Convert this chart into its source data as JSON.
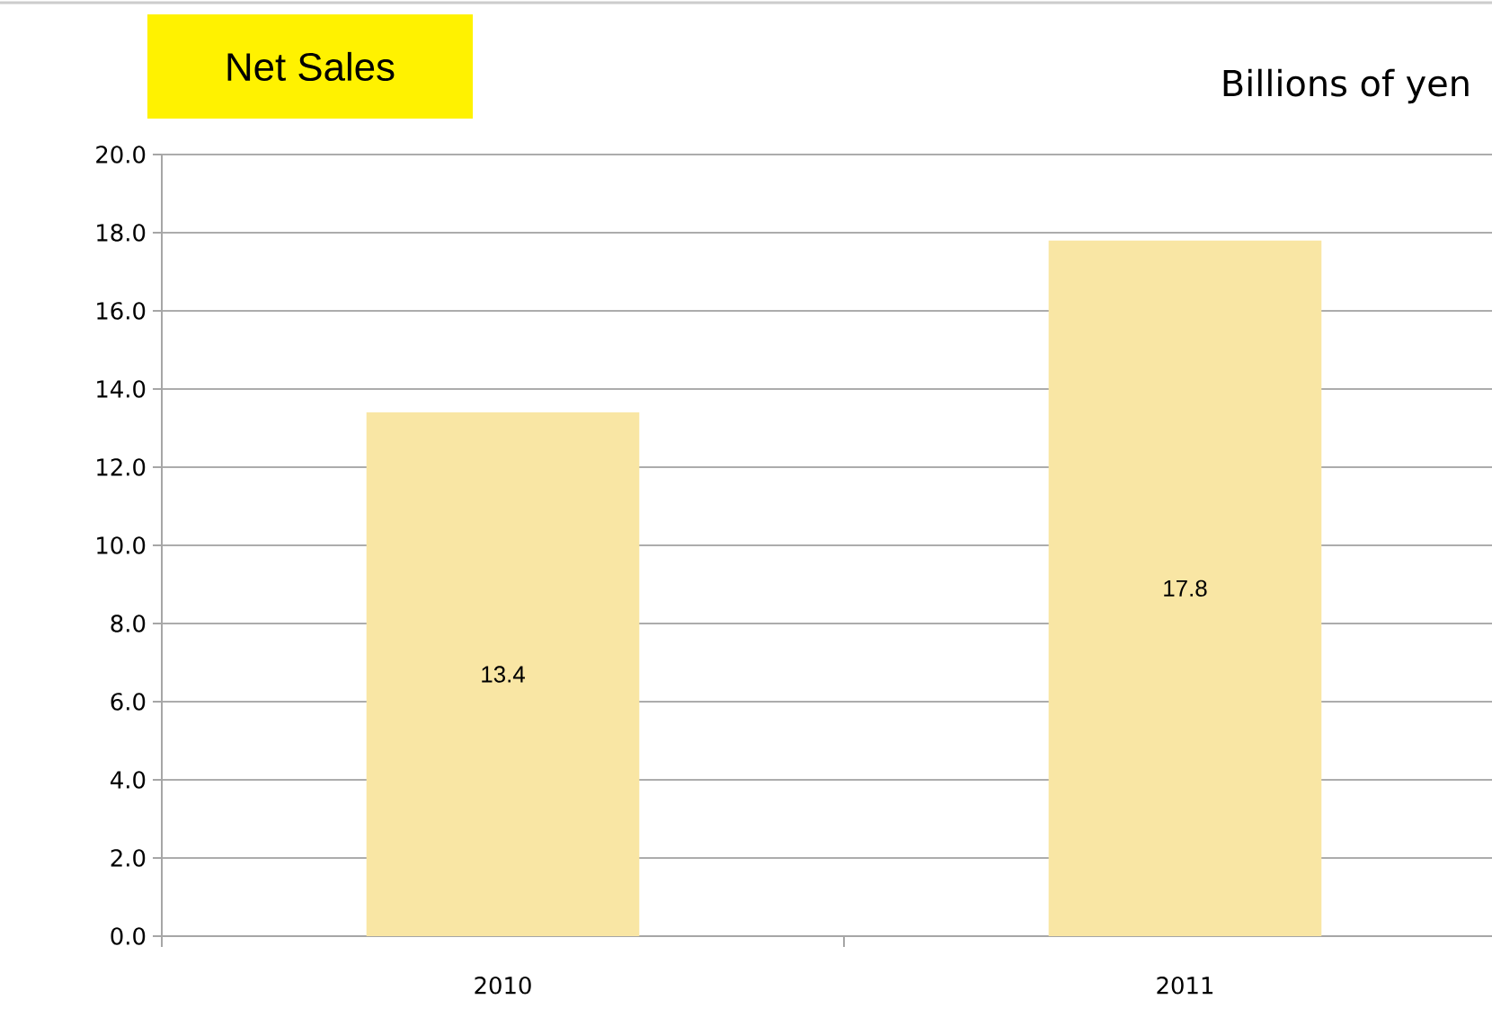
{
  "chart_data": {
    "type": "bar",
    "title": "Net Sales",
    "subtitle": "Billions of yen",
    "categories": [
      "2010",
      "2011"
    ],
    "values": [
      13.4,
      17.8
    ],
    "color": "#f9e6a4",
    "ylim": [
      0,
      20
    ],
    "yticks": [
      {
        "value": 0,
        "label": "0.0"
      },
      {
        "value": 2,
        "label": "2.0"
      },
      {
        "value": 4,
        "label": "4.0"
      },
      {
        "value": 6,
        "label": "6.0"
      },
      {
        "value": 8,
        "label": "8.0"
      },
      {
        "value": 10,
        "label": "10.0"
      },
      {
        "value": 12,
        "label": "12.0"
      },
      {
        "value": 14,
        "label": "14.0"
      },
      {
        "value": 16,
        "label": "16.0"
      },
      {
        "value": 18,
        "label": "18.0"
      },
      {
        "value": 20,
        "label": "20.0"
      }
    ],
    "grid": "y",
    "data_labels": true
  }
}
